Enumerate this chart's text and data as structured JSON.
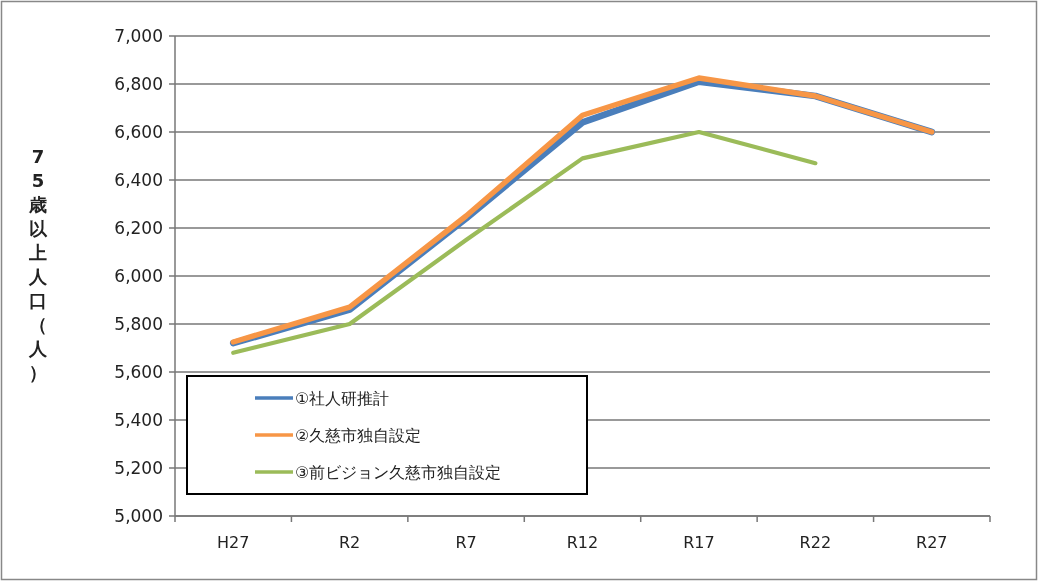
{
  "chart_data": {
    "type": "line",
    "ylabel": "75歳以上人口（人）",
    "categories": [
      "H27",
      "R2",
      "R7",
      "R12",
      "R17",
      "R22",
      "R27"
    ],
    "series": [
      {
        "name": "①社人研推計",
        "color": "#4a7ebb",
        "values": [
          5720,
          5860,
          6240,
          6640,
          6810,
          6750,
          6600
        ]
      },
      {
        "name": "②久慈市独自設定",
        "color": "#f79646",
        "values": [
          5725,
          5870,
          6250,
          6670,
          6825,
          6750,
          6600
        ]
      },
      {
        "name": "③前ビジョン久慈市独自設定",
        "color": "#9bbb59",
        "values": [
          5680,
          5800,
          6150,
          6490,
          6600,
          6470,
          null
        ]
      }
    ],
    "ylim": [
      5000,
      7000
    ],
    "yticks": [
      {
        "value": 5000,
        "label": "5,000"
      },
      {
        "value": 5200,
        "label": "5,200"
      },
      {
        "value": 5400,
        "label": "5,400"
      },
      {
        "value": 5600,
        "label": "5,600"
      },
      {
        "value": 5800,
        "label": "5,800"
      },
      {
        "value": 6000,
        "label": "6,000"
      },
      {
        "value": 6200,
        "label": "6,200"
      },
      {
        "value": 6400,
        "label": "6,400"
      },
      {
        "value": 6600,
        "label": "6,600"
      },
      {
        "value": 6800,
        "label": "6,800"
      },
      {
        "value": 7000,
        "label": "7,000"
      }
    ],
    "grid": "y",
    "legend": "bottom left",
    "marker": "none",
    "line_style": "solid"
  }
}
